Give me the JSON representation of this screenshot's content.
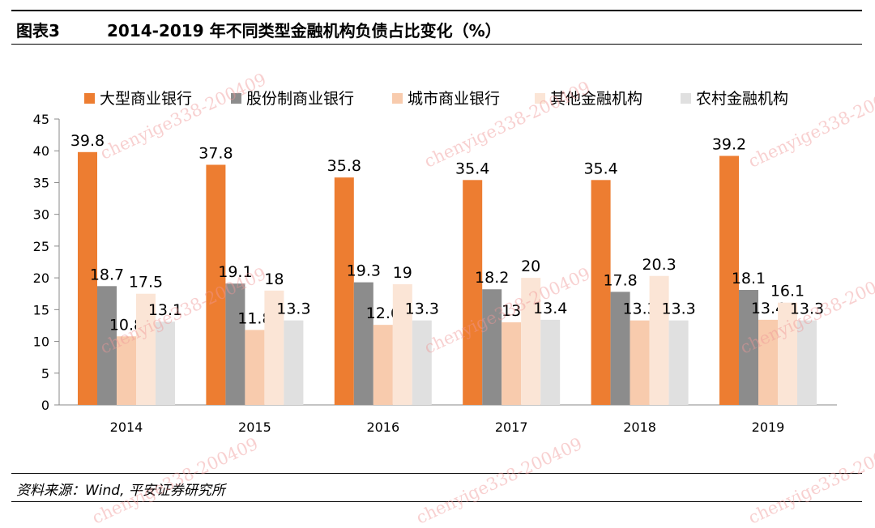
{
  "header": {
    "figure_label": "图表3",
    "title": "2014-2019 年不同类型金融机构负债占比变化（%）"
  },
  "source": "资料来源：Wind, 平安证券研究所",
  "watermark": "chenyige338-200409",
  "chart_data": {
    "type": "bar",
    "title": "2014-2019 年不同类型金融机构负债占比变化（%）",
    "categories": [
      "2014",
      "2015",
      "2016",
      "2017",
      "2018",
      "2019"
    ],
    "series": [
      {
        "name": "大型商业银行",
        "color": "#ED7D31",
        "values": [
          39.8,
          37.8,
          35.8,
          35.4,
          35.4,
          39.2
        ]
      },
      {
        "name": "股份制商业银行",
        "color": "#8C8C8C",
        "values": [
          18.7,
          19.1,
          19.3,
          18.2,
          17.8,
          18.1
        ]
      },
      {
        "name": "城市商业银行",
        "color": "#F8CBAD",
        "values": [
          10.8,
          11.8,
          12.6,
          13,
          13.3,
          13.4
        ]
      },
      {
        "name": "其他金融机构",
        "color": "#FBE5D6",
        "values": [
          17.5,
          18,
          19,
          20,
          20.3,
          16.1
        ]
      },
      {
        "name": "农村金融机构",
        "color": "#E0E0E0",
        "values": [
          13.1,
          13.3,
          13.3,
          13.4,
          13.3,
          13.3
        ]
      }
    ],
    "ylim": [
      0,
      45
    ],
    "yticks": [
      0,
      5,
      10,
      15,
      20,
      25,
      30,
      35,
      40,
      45
    ],
    "xlabel": "",
    "ylabel": "",
    "legend": "top",
    "grid": false
  }
}
